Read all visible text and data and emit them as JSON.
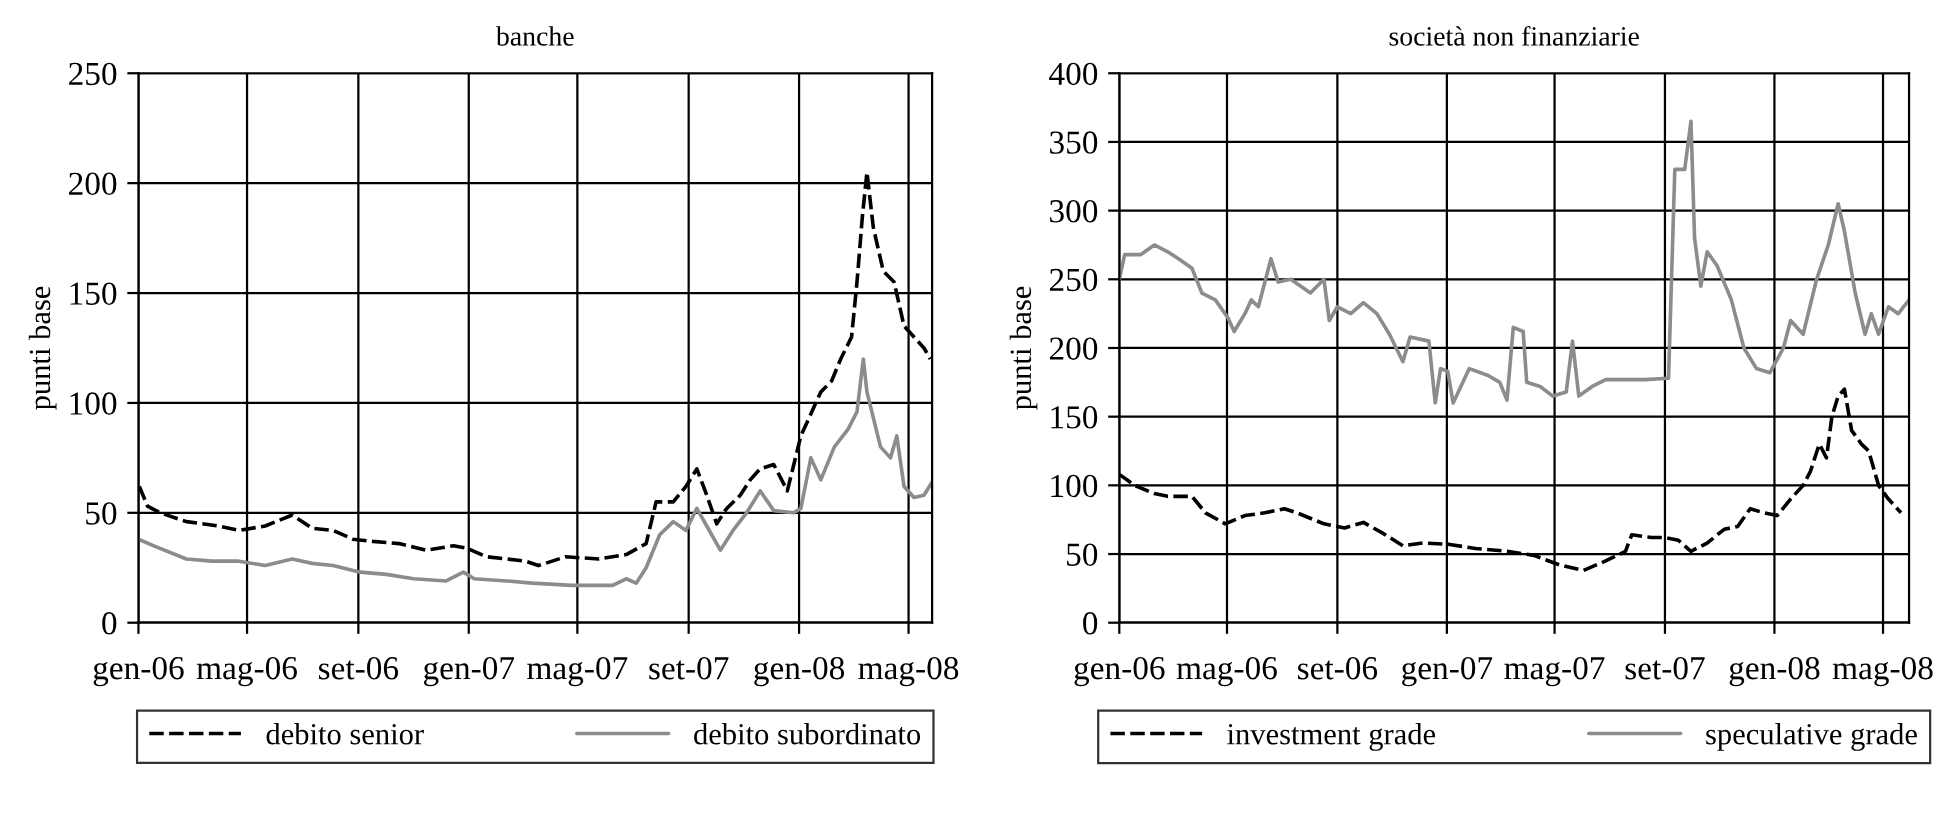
{
  "chart_data": [
    {
      "type": "line",
      "title": "banche",
      "ylabel": "punti base",
      "xlim": [
        "2006-01-01",
        "2008-05-27"
      ],
      "ylim": [
        0,
        250
      ],
      "yticks": [
        0,
        50,
        100,
        150,
        200,
        250
      ],
      "xticks": [
        {
          "value": "2006-01-01",
          "label": "gen-06"
        },
        {
          "value": "2006-05-01",
          "label": "mag-06"
        },
        {
          "value": "2006-09-01",
          "label": "set-06"
        },
        {
          "value": "2007-01-01",
          "label": "gen-07"
        },
        {
          "value": "2007-05-01",
          "label": "mag-07"
        },
        {
          "value": "2007-09-01",
          "label": "set-07"
        },
        {
          "value": "2008-01-01",
          "label": "gen-08"
        },
        {
          "value": "2008-05-01",
          "label": "mag-08"
        }
      ],
      "grid": true,
      "legend": "bottom",
      "series": [
        {
          "name": "debito senior",
          "color": "#000000",
          "line_style": "dashed",
          "x": [
            "2006-01-02",
            "2006-01-11",
            "2006-01-25",
            "2006-02-23",
            "2006-03-31",
            "2006-04-22",
            "2006-05-21",
            "2006-06-20",
            "2006-07-12",
            "2006-08-04",
            "2006-08-26",
            "2006-09-17",
            "2006-10-16",
            "2006-11-15",
            "2006-12-15",
            "2006-12-29",
            "2007-01-21",
            "2007-02-12",
            "2007-03-05",
            "2007-03-19",
            "2007-04-18",
            "2007-05-25",
            "2007-06-24",
            "2007-07-16",
            "2007-07-27",
            "2007-08-15",
            "2007-08-29",
            "2007-09-10",
            "2007-09-21",
            "2007-10-02",
            "2007-10-13",
            "2007-10-28",
            "2007-11-08",
            "2007-11-19",
            "2007-12-04",
            "2007-12-19",
            "2008-01-03",
            "2008-01-14",
            "2008-01-25",
            "2008-02-06",
            "2008-02-16",
            "2008-02-28",
            "2008-03-05",
            "2008-03-11",
            "2008-03-16",
            "2008-03-23",
            "2008-04-03",
            "2008-04-15",
            "2008-04-26",
            "2008-05-07",
            "2008-05-18",
            "2008-05-25"
          ],
          "values": [
            62,
            53,
            50,
            46,
            44,
            42,
            44,
            49,
            43,
            42,
            38,
            37,
            36,
            33,
            35,
            34,
            30,
            29,
            28,
            26,
            30,
            29,
            31,
            36,
            55,
            55,
            62,
            70,
            58,
            45,
            52,
            58,
            65,
            70,
            72,
            60,
            85,
            95,
            105,
            110,
            120,
            130,
            155,
            185,
            205,
            180,
            160,
            155,
            135,
            130,
            125,
            120
          ]
        },
        {
          "name": "debito subordinato",
          "color": "#8c8c8c",
          "line_style": "solid",
          "x": [
            "2006-01-01",
            "2006-01-18",
            "2006-02-23",
            "2006-03-23",
            "2006-04-22",
            "2006-05-21",
            "2006-06-20",
            "2006-07-12",
            "2006-08-04",
            "2006-09-03",
            "2006-10-02",
            "2006-11-01",
            "2006-12-07",
            "2006-12-26",
            "2007-01-07",
            "2007-02-12",
            "2007-03-12",
            "2007-04-25",
            "2007-06-09",
            "2007-06-24",
            "2007-07-05",
            "2007-07-16",
            "2007-07-31",
            "2007-08-15",
            "2007-08-29",
            "2007-09-10",
            "2007-09-21",
            "2007-10-06",
            "2007-10-20",
            "2007-11-04",
            "2007-11-19",
            "2007-12-04",
            "2007-12-26",
            "2008-01-03",
            "2008-01-14",
            "2008-01-25",
            "2008-02-09",
            "2008-02-24",
            "2008-03-05",
            "2008-03-12",
            "2008-03-16",
            "2008-03-31",
            "2008-04-11",
            "2008-04-18",
            "2008-04-26",
            "2008-05-07",
            "2008-05-18",
            "2008-05-27"
          ],
          "values": [
            38,
            35,
            29,
            28,
            28,
            26,
            29,
            27,
            26,
            23,
            22,
            20,
            19,
            23,
            20,
            19,
            18,
            17,
            17,
            20,
            18,
            25,
            40,
            46,
            42,
            52,
            44,
            33,
            42,
            50,
            60,
            51,
            50,
            52,
            75,
            65,
            80,
            88,
            96,
            120,
            105,
            80,
            75,
            85,
            62,
            57,
            58,
            64
          ]
        }
      ]
    },
    {
      "type": "line",
      "title": "società non finanziarie",
      "ylabel": "punti base",
      "xlim": [
        "2006-01-01",
        "2008-05-30"
      ],
      "ylim": [
        0,
        400
      ],
      "yticks": [
        0,
        50,
        100,
        150,
        200,
        250,
        300,
        350,
        400
      ],
      "xticks": [
        {
          "value": "2006-01-01",
          "label": "gen-06"
        },
        {
          "value": "2006-05-01",
          "label": "mag-06"
        },
        {
          "value": "2006-09-01",
          "label": "set-06"
        },
        {
          "value": "2007-01-01",
          "label": "gen-07"
        },
        {
          "value": "2007-05-01",
          "label": "mag-07"
        },
        {
          "value": "2007-09-01",
          "label": "set-07"
        },
        {
          "value": "2008-01-01",
          "label": "gen-08"
        },
        {
          "value": "2008-05-01",
          "label": "mag-08"
        }
      ],
      "grid": true,
      "legend": "bottom",
      "series": [
        {
          "name": "investment grade",
          "color": "#000000",
          "line_style": "dashed",
          "x": [
            "2006-01-01",
            "2006-01-18",
            "2006-02-09",
            "2006-02-24",
            "2006-03-23",
            "2006-04-07",
            "2006-04-29",
            "2006-05-21",
            "2006-06-12",
            "2006-07-04",
            "2006-07-18",
            "2006-08-17",
            "2006-09-09",
            "2006-09-30",
            "2006-10-22",
            "2006-11-13",
            "2006-12-05",
            "2007-01-04",
            "2007-02-02",
            "2007-03-09",
            "2007-04-08",
            "2007-05-07",
            "2007-06-02",
            "2007-06-27",
            "2007-07-19",
            "2007-07-26",
            "2007-08-17",
            "2007-09-01",
            "2007-09-16",
            "2007-09-30",
            "2007-10-18",
            "2007-11-06",
            "2007-11-21",
            "2007-12-05",
            "2007-12-20",
            "2008-01-04",
            "2008-01-19",
            "2008-02-02",
            "2008-02-10",
            "2008-02-20",
            "2008-02-28",
            "2008-03-05",
            "2008-03-12",
            "2008-03-19",
            "2008-03-27",
            "2008-04-07",
            "2008-04-15",
            "2008-04-26",
            "2008-05-07",
            "2008-05-21"
          ],
          "values": [
            108,
            100,
            94,
            92,
            92,
            80,
            72,
            78,
            80,
            83,
            80,
            72,
            69,
            73,
            65,
            56,
            58,
            57,
            54,
            52,
            49,
            42,
            38,
            45,
            52,
            64,
            62,
            62,
            60,
            52,
            58,
            68,
            70,
            83,
            80,
            78,
            90,
            100,
            110,
            130,
            120,
            150,
            165,
            170,
            140,
            130,
            125,
            100,
            90,
            80
          ]
        },
        {
          "name": "speculative grade",
          "color": "#8c8c8c",
          "line_style": "solid",
          "x": [
            "2006-01-01",
            "2006-01-07",
            "2006-01-25",
            "2006-02-09",
            "2006-02-24",
            "2006-03-08",
            "2006-03-23",
            "2006-04-03",
            "2006-04-18",
            "2006-05-02",
            "2006-05-09",
            "2006-05-21",
            "2006-05-28",
            "2006-06-05",
            "2006-06-19",
            "2006-06-27",
            "2006-07-11",
            "2006-08-02",
            "2006-08-17",
            "2006-08-23",
            "2006-09-01",
            "2006-09-16",
            "2006-09-30",
            "2006-10-15",
            "2006-10-29",
            "2006-11-13",
            "2006-11-21",
            "2006-12-12",
            "2006-12-19",
            "2006-12-25",
            "2007-01-02",
            "2007-01-08",
            "2007-01-26",
            "2007-02-16",
            "2007-03-01",
            "2007-03-09",
            "2007-03-16",
            "2007-03-27",
            "2007-03-31",
            "2007-04-15",
            "2007-04-29",
            "2007-05-14",
            "2007-05-21",
            "2007-05-28",
            "2007-06-12",
            "2007-06-27",
            "2007-07-19",
            "2007-08-10",
            "2007-09-05",
            "2007-09-12",
            "2007-09-23",
            "2007-09-30",
            "2007-10-04",
            "2007-10-11",
            "2007-10-18",
            "2007-10-29",
            "2007-11-14",
            "2007-11-28",
            "2007-12-12",
            "2007-12-27",
            "2008-01-11",
            "2008-01-19",
            "2008-02-02",
            "2008-02-17",
            "2008-03-01",
            "2008-03-12",
            "2008-03-19",
            "2008-03-31",
            "2008-04-11",
            "2008-04-18",
            "2008-04-26",
            "2008-05-07",
            "2008-05-18",
            "2008-05-30"
          ],
          "values": [
            250,
            268,
            268,
            275,
            270,
            265,
            258,
            240,
            235,
            222,
            212,
            225,
            235,
            230,
            265,
            248,
            250,
            240,
            250,
            220,
            230,
            225,
            233,
            225,
            210,
            190,
            208,
            205,
            160,
            185,
            183,
            160,
            185,
            180,
            175,
            162,
            215,
            212,
            175,
            172,
            165,
            168,
            205,
            165,
            172,
            177,
            177,
            177,
            178,
            330,
            330,
            365,
            280,
            245,
            270,
            260,
            235,
            200,
            185,
            182,
            200,
            220,
            210,
            250,
            275,
            305,
            285,
            240,
            210,
            225,
            210,
            230,
            225,
            235
          ]
        }
      ]
    }
  ]
}
